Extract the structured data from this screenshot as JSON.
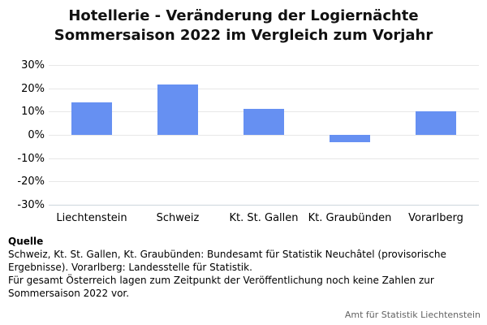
{
  "title": {
    "line1": "Hotellerie - Veränderung der Logiernächte",
    "line2": "Sommersaison 2022 im Vergleich zum Vorjahr"
  },
  "chart_data": {
    "type": "bar",
    "title": "Hotellerie - Veränderung der Logiernächte Sommersaison 2022 im Vergleich zum Vorjahr",
    "categories": [
      "Liechtenstein",
      "Schweiz",
      "Kt. St. Gallen",
      "Kt. Graubünden",
      "Vorarlberg"
    ],
    "values": [
      14,
      21.5,
      11,
      -3,
      10
    ],
    "unit": "%",
    "xlabel": "",
    "ylabel": "",
    "ylim": [
      -30,
      30
    ],
    "yticks": [
      30,
      20,
      10,
      0,
      -10,
      -20,
      -30
    ],
    "ytick_labels": [
      "30%",
      "20%",
      "10%",
      "0%",
      "-10%",
      "-20%",
      "-30%"
    ],
    "grid": "horizontal",
    "legend": "none"
  },
  "colors": {
    "bar": "#6690f2",
    "gridline": "#e7e7e7",
    "axis_line": "#ccd6dd",
    "credit_text": "#636363"
  },
  "footer": {
    "source_heading": "Quelle",
    "source_lines": [
      "Schweiz, Kt. St. Gallen, Kt. Graubünden: Bundesamt für Statistik Neuchâtel (provisorische",
      "Ergebnisse). Vorarlberg: Landesstelle für Statistik.",
      "Für gesamt Österreich lagen zum Zeitpunkt der Veröffentlichung noch keine Zahlen zur",
      "Sommersaison 2022 vor."
    ],
    "credit": "Amt für Statistik Liechtenstein"
  }
}
